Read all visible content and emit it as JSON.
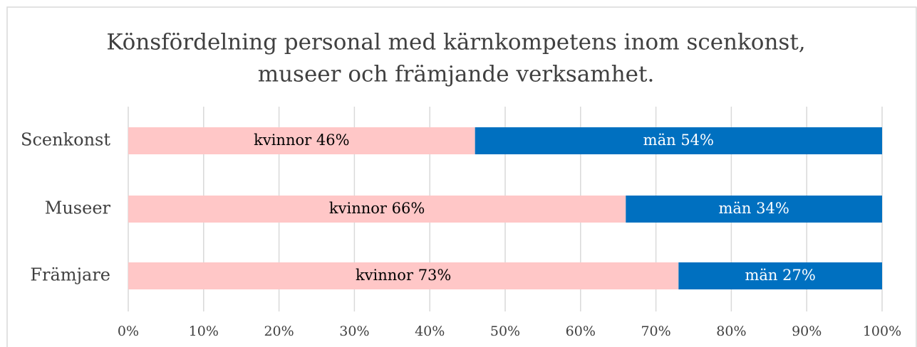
{
  "chart_data": {
    "type": "stacked_bar_horizontal",
    "title": [
      "Könsfördelning personal med kärnkompetens inom scenkonst,",
      "museer och främjande verksamhet."
    ],
    "categories": [
      "Scenkonst",
      "Museer",
      "Främjare"
    ],
    "series": [
      {
        "name": "kvinnor",
        "color": "#ffc7c7",
        "values": [
          46,
          66,
          73
        ],
        "value_labels": [
          "46%",
          "66%",
          "73%"
        ]
      },
      {
        "name": "män",
        "color": "#0070c0",
        "values": [
          54,
          34,
          27
        ],
        "value_labels": [
          "54%",
          "34%",
          "27%"
        ]
      }
    ],
    "xlim": [
      0,
      100
    ],
    "xticks": [
      {
        "value": 0,
        "label": "0%"
      },
      {
        "value": 10,
        "label": "10%"
      },
      {
        "value": 20,
        "label": "20%"
      },
      {
        "value": 30,
        "label": "30%"
      },
      {
        "value": 40,
        "label": "40%"
      },
      {
        "value": 50,
        "label": "50%"
      },
      {
        "value": 60,
        "label": "60%"
      },
      {
        "value": 70,
        "label": "70%"
      },
      {
        "value": 80,
        "label": "80%"
      },
      {
        "value": 90,
        "label": "90%"
      },
      {
        "value": 100,
        "label": "100%"
      }
    ],
    "grid": true
  }
}
